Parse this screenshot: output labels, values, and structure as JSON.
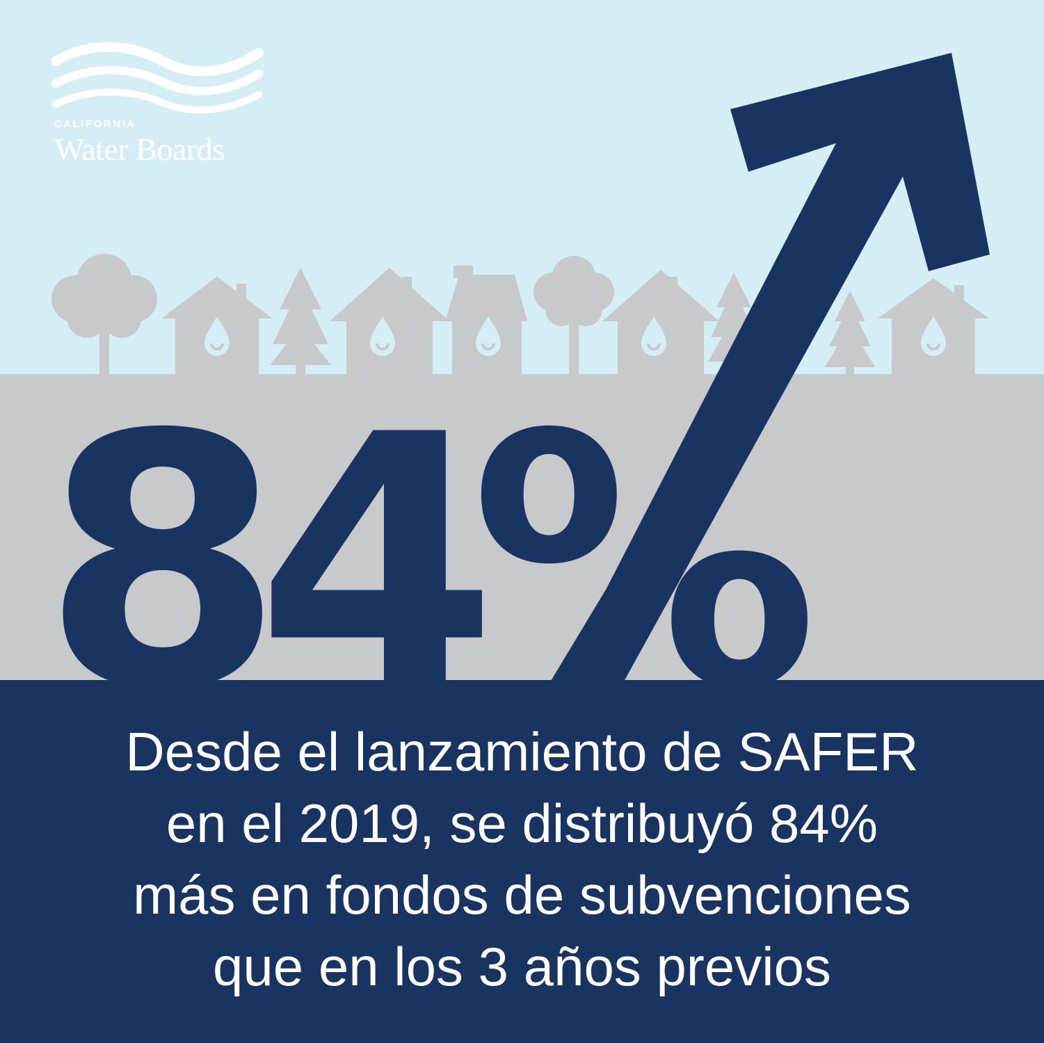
{
  "logo": {
    "small_text": "CALIFORNIA",
    "big_text": "Water Boards"
  },
  "headline": {
    "value": "84%"
  },
  "caption": {
    "lines": [
      "Desde el lanzamiento de SAFER",
      "en el 2019, se distribuyó 84%",
      "más en fondos de subvenciones",
      "que en los 3 años previos"
    ]
  },
  "colors": {
    "sky": "#d5eef6",
    "ground": "#c8c9cb",
    "navy": "#193461",
    "silhouette": "#c8c9cb",
    "drop": "#d5eef6",
    "text_light": "#ffffff"
  },
  "icons": [
    "water-waves-logo-icon",
    "tree-icon",
    "pine-tree-icon",
    "house-icon",
    "water-drop-icon",
    "arrow-up-right-icon"
  ]
}
